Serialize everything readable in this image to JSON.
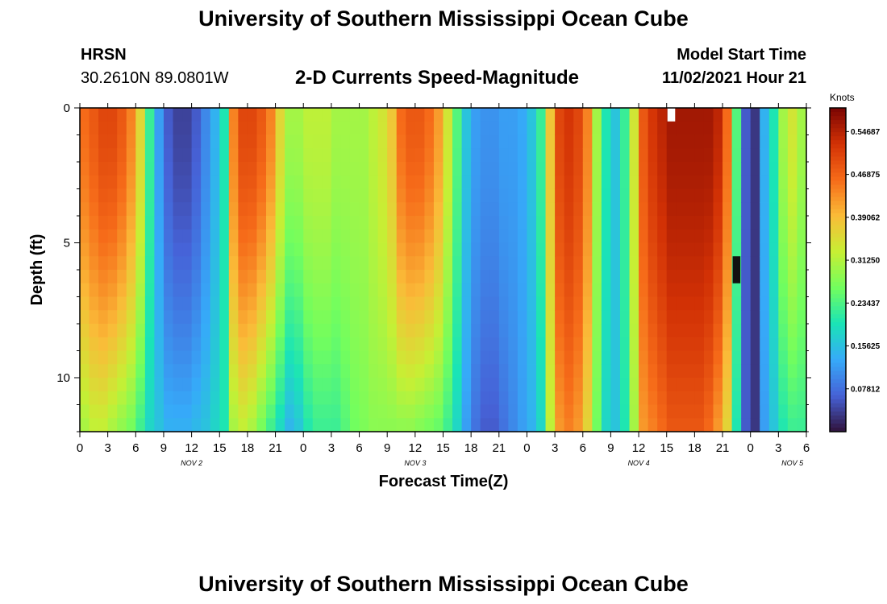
{
  "page": {
    "title": "University of Southern Mississippi Ocean Cube",
    "footer_title": "University of Southern Mississippi Ocean Cube",
    "station": "HRSN",
    "coords": "30.2610N  89.0801W",
    "product": "2-D Currents Speed-Magnitude",
    "model_start_label": "Model Start Time",
    "model_start_value": "11/02/2021 Hour 21"
  },
  "chart_data": {
    "type": "heatmap",
    "title": "2-D Currents Speed-Magnitude",
    "xlabel": "Forecast Time(Z)",
    "ylabel": "Depth (ft)",
    "colorbar_label": "Knots",
    "x_tick_labels": [
      "0",
      "3",
      "6",
      "9",
      "12",
      "15",
      "18",
      "21",
      "0",
      "3",
      "6",
      "9",
      "12",
      "15",
      "18",
      "21",
      "0",
      "3",
      "6",
      "9",
      "12",
      "15",
      "18",
      "21",
      "0",
      "3",
      "6"
    ],
    "day_labels": [
      {
        "label": "NOV 2",
        "at_tick": 4
      },
      {
        "label": "NOV 3",
        "at_tick": 12
      },
      {
        "label": "NOV 4",
        "at_tick": 20
      },
      {
        "label": "NOV 5",
        "at_tick": 25.5
      }
    ],
    "y_tick_labels": [
      "0",
      "5",
      "10"
    ],
    "y_tick_values": [
      0,
      5,
      10
    ],
    "ylim": [
      0,
      12
    ],
    "xlim_hours": [
      0,
      78
    ],
    "colorbar_ticks": [
      "0.54687",
      "0.46875",
      "0.39062",
      "0.31250",
      "0.23437",
      "0.15625",
      "0.07812"
    ],
    "colorbar_tick_values": [
      0.54687,
      0.46875,
      0.39062,
      0.3125,
      0.23437,
      0.15625,
      0.07812
    ],
    "value_range": [
      0.0,
      0.59
    ],
    "profile_hours": [
      0,
      1,
      2,
      3,
      4,
      5,
      6,
      7,
      8,
      9,
      10,
      11,
      12,
      13,
      14,
      15,
      16,
      17,
      18,
      19,
      20,
      21,
      22,
      23,
      24,
      25,
      26,
      27,
      28,
      29,
      30,
      31,
      32,
      33,
      34,
      35,
      36,
      37,
      38,
      39,
      40,
      41,
      42,
      43,
      44,
      45,
      46,
      47,
      48,
      49,
      50,
      51,
      52,
      53,
      54,
      55,
      56,
      57,
      58,
      59,
      60,
      61,
      62,
      63,
      64,
      65,
      66,
      67,
      68,
      69,
      70,
      71,
      72,
      73,
      74,
      75,
      76,
      77
    ],
    "surface_speed": [
      0.46,
      0.48,
      0.5,
      0.5,
      0.48,
      0.44,
      0.36,
      0.22,
      0.12,
      0.06,
      0.04,
      0.04,
      0.06,
      0.1,
      0.14,
      0.2,
      0.44,
      0.5,
      0.5,
      0.48,
      0.44,
      0.36,
      0.3,
      0.3,
      0.32,
      0.32,
      0.32,
      0.3,
      0.3,
      0.3,
      0.3,
      0.32,
      0.34,
      0.38,
      0.46,
      0.48,
      0.48,
      0.46,
      0.42,
      0.34,
      0.24,
      0.16,
      0.12,
      0.11,
      0.11,
      0.12,
      0.12,
      0.13,
      0.16,
      0.22,
      0.38,
      0.5,
      0.52,
      0.5,
      0.44,
      0.3,
      0.2,
      0.16,
      0.22,
      0.34,
      0.48,
      0.52,
      0.54,
      0.56,
      0.56,
      0.56,
      0.56,
      0.56,
      0.54,
      0.46,
      0.24,
      0.06,
      0.03,
      0.14,
      0.2,
      0.3,
      0.34,
      0.3
    ],
    "bottom_speed": [
      0.3,
      0.32,
      0.32,
      0.3,
      0.28,
      0.26,
      0.22,
      0.18,
      0.16,
      0.14,
      0.14,
      0.14,
      0.15,
      0.16,
      0.18,
      0.2,
      0.3,
      0.32,
      0.3,
      0.26,
      0.22,
      0.18,
      0.14,
      0.16,
      0.2,
      0.22,
      0.22,
      0.22,
      0.24,
      0.26,
      0.27,
      0.28,
      0.28,
      0.28,
      0.28,
      0.28,
      0.27,
      0.26,
      0.25,
      0.22,
      0.18,
      0.12,
      0.08,
      0.06,
      0.06,
      0.08,
      0.1,
      0.12,
      0.14,
      0.18,
      0.32,
      0.42,
      0.44,
      0.42,
      0.36,
      0.26,
      0.18,
      0.16,
      0.2,
      0.3,
      0.42,
      0.44,
      0.46,
      0.48,
      0.48,
      0.48,
      0.48,
      0.46,
      0.42,
      0.36,
      0.2,
      0.06,
      0.03,
      0.12,
      0.16,
      0.2,
      0.22,
      0.22
    ],
    "missing_cells": [
      {
        "hour": 63,
        "depth_from": 0,
        "depth_to": 0.5
      },
      {
        "hour": 70,
        "depth_from": 5.5,
        "depth_to": 6.5
      }
    ]
  },
  "colors": {
    "colormap": [
      "#30123b",
      "#4662d7",
      "#36aaf9",
      "#1ae4b6",
      "#72fe5e",
      "#c7ef34",
      "#fabb38",
      "#f66b19",
      "#d23105",
      "#7a0403"
    ],
    "missing_top": "#ffffff",
    "missing_mid": "#111111"
  }
}
